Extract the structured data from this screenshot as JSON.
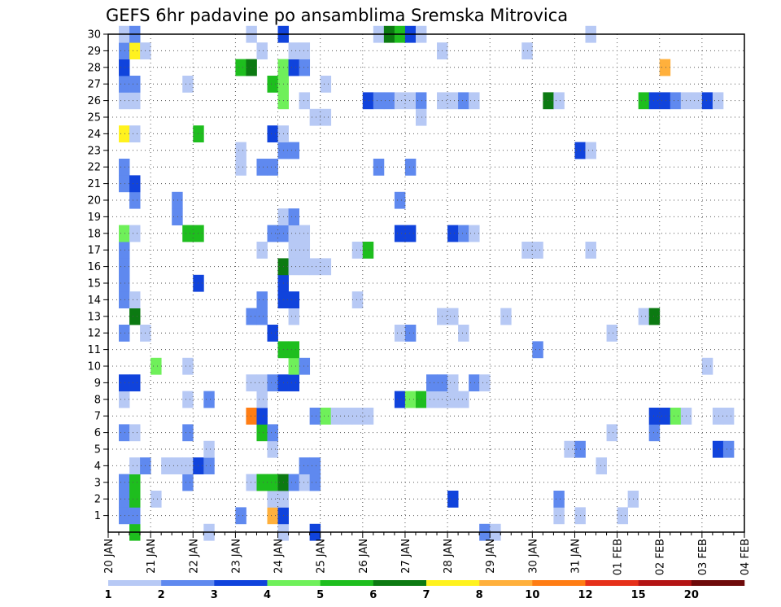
{
  "chart_data": {
    "type": "heatmap",
    "title": "GEFS 6hr padavine po ansamblima Sremska Mitrovica",
    "xlabel": "",
    "ylabel": "",
    "x_ticks": [
      "20 JAN",
      "21 JAN",
      "22 JAN",
      "23 JAN",
      "24 JAN",
      "25 JAN",
      "26 JAN",
      "27 JAN",
      "28 JAN",
      "29 JAN",
      "30 JAN",
      "31 JAN",
      "01 FEB",
      "02 FEB",
      "03 FEB",
      "04 FEB"
    ],
    "x_range": [
      "2020-01-20T00:00",
      "2020-02-04T00:00"
    ],
    "x_step_hours": 6,
    "y_ticks": [
      1,
      2,
      3,
      4,
      5,
      6,
      7,
      8,
      9,
      10,
      11,
      12,
      13,
      14,
      15,
      16,
      17,
      18,
      19,
      20,
      21,
      22,
      23,
      24,
      25,
      26,
      27,
      28,
      29,
      30
    ],
    "y_range": [
      0,
      30
    ],
    "grid": true,
    "legend": {
      "placement": "bottom",
      "labels": [
        "1",
        "2",
        "3",
        "4",
        "5",
        "6",
        "7",
        "8",
        "10",
        "12",
        "15",
        "20"
      ],
      "bounds": [
        1,
        2,
        3,
        4,
        5,
        6,
        7,
        8,
        10,
        12,
        15,
        20
      ],
      "colors": [
        "#b7c9f5",
        "#5f89ef",
        "#1043dc",
        "#6ff05a",
        "#1ebe1e",
        "#0c7a12",
        "#fff21e",
        "#ffb03c",
        "#ff7d14",
        "#e6301a",
        "#b41414",
        "#6e0a0a"
      ]
    },
    "cells": [
      {
        "t": "20 JAN 06",
        "m": 1,
        "l": 2
      },
      {
        "t": "20 JAN 06",
        "m": 2,
        "l": 2
      },
      {
        "t": "20 JAN 06",
        "m": 3,
        "l": 2
      },
      {
        "t": "20 JAN 06",
        "m": 6,
        "l": 2
      },
      {
        "t": "20 JAN 06",
        "m": 8,
        "l": 1
      },
      {
        "t": "20 JAN 06",
        "m": 9,
        "l": 3
      },
      {
        "t": "20 JAN 06",
        "m": 12,
        "l": 2
      },
      {
        "t": "20 JAN 06",
        "m": 14,
        "l": 2
      },
      {
        "t": "20 JAN 06",
        "m": 15,
        "l": 2
      },
      {
        "t": "20 JAN 06",
        "m": 16,
        "l": 2
      },
      {
        "t": "20 JAN 06",
        "m": 17,
        "l": 2
      },
      {
        "t": "20 JAN 06",
        "m": 18,
        "l": 4
      },
      {
        "t": "20 JAN 06",
        "m": 21,
        "l": 2
      },
      {
        "t": "20 JAN 06",
        "m": 22,
        "l": 2
      },
      {
        "t": "20 JAN 06",
        "m": 24,
        "l": 7
      },
      {
        "t": "20 JAN 06",
        "m": 26,
        "l": 1
      },
      {
        "t": "20 JAN 06",
        "m": 27,
        "l": 2
      },
      {
        "t": "20 JAN 06",
        "m": 28,
        "l": 3
      },
      {
        "t": "20 JAN 06",
        "m": 29,
        "l": 2
      },
      {
        "t": "20 JAN 06",
        "m": 30,
        "l": 1
      },
      {
        "t": "20 JAN 12",
        "m": 0,
        "l": 5
      },
      {
        "t": "20 JAN 12",
        "m": 1,
        "l": 2
      },
      {
        "t": "20 JAN 12",
        "m": 2,
        "l": 5
      },
      {
        "t": "20 JAN 12",
        "m": 3,
        "l": 5
      },
      {
        "t": "20 JAN 12",
        "m": 4,
        "l": 1
      },
      {
        "t": "20 JAN 12",
        "m": 6,
        "l": 1
      },
      {
        "t": "20 JAN 12",
        "m": 9,
        "l": 3
      },
      {
        "t": "20 JAN 12",
        "m": 13,
        "l": 6
      },
      {
        "t": "20 JAN 12",
        "m": 14,
        "l": 1
      },
      {
        "t": "20 JAN 12",
        "m": 18,
        "l": 1
      },
      {
        "t": "20 JAN 12",
        "m": 20,
        "l": 2
      },
      {
        "t": "20 JAN 12",
        "m": 21,
        "l": 3
      },
      {
        "t": "20 JAN 12",
        "m": 24,
        "l": 1
      },
      {
        "t": "20 JAN 12",
        "m": 26,
        "l": 1
      },
      {
        "t": "20 JAN 12",
        "m": 27,
        "l": 2
      },
      {
        "t": "20 JAN 12",
        "m": 29,
        "l": 7
      },
      {
        "t": "20 JAN 12",
        "m": 30,
        "l": 2
      },
      {
        "t": "20 JAN 18",
        "m": 4,
        "l": 2
      },
      {
        "t": "20 JAN 18",
        "m": 12,
        "l": 1
      },
      {
        "t": "20 JAN 18",
        "m": 29,
        "l": 1
      },
      {
        "t": "21 JAN 00",
        "m": 2,
        "l": 1
      },
      {
        "t": "21 JAN 00",
        "m": 10,
        "l": 4
      },
      {
        "t": "21 JAN 06",
        "m": 4,
        "l": 1
      },
      {
        "t": "21 JAN 12",
        "m": 4,
        "l": 1
      },
      {
        "t": "21 JAN 12",
        "m": 19,
        "l": 2
      },
      {
        "t": "21 JAN 12",
        "m": 20,
        "l": 2
      },
      {
        "t": "21 JAN 18",
        "m": 3,
        "l": 2
      },
      {
        "t": "21 JAN 18",
        "m": 4,
        "l": 1
      },
      {
        "t": "21 JAN 18",
        "m": 6,
        "l": 2
      },
      {
        "t": "21 JAN 18",
        "m": 8,
        "l": 1
      },
      {
        "t": "21 JAN 18",
        "m": 10,
        "l": 1
      },
      {
        "t": "21 JAN 18",
        "m": 18,
        "l": 5
      },
      {
        "t": "21 JAN 18",
        "m": 27,
        "l": 1
      },
      {
        "t": "22 JAN 00",
        "m": 4,
        "l": 3
      },
      {
        "t": "22 JAN 00",
        "m": 15,
        "l": 3
      },
      {
        "t": "22 JAN 00",
        "m": 18,
        "l": 5
      },
      {
        "t": "22 JAN 00",
        "m": 24,
        "l": 5
      },
      {
        "t": "22 JAN 06",
        "m": 0,
        "l": 1
      },
      {
        "t": "22 JAN 06",
        "m": 4,
        "l": 2
      },
      {
        "t": "22 JAN 06",
        "m": 5,
        "l": 1
      },
      {
        "t": "22 JAN 06",
        "m": 8,
        "l": 2
      },
      {
        "t": "23 JAN 00",
        "m": 1,
        "l": 2
      },
      {
        "t": "23 JAN 00",
        "m": 22,
        "l": 1
      },
      {
        "t": "23 JAN 00",
        "m": 23,
        "l": 1
      },
      {
        "t": "23 JAN 00",
        "m": 28,
        "l": 5
      },
      {
        "t": "23 JAN 06",
        "m": 3,
        "l": 1
      },
      {
        "t": "23 JAN 06",
        "m": 7,
        "l": 9
      },
      {
        "t": "23 JAN 06",
        "m": 9,
        "l": 1
      },
      {
        "t": "23 JAN 06",
        "m": 13,
        "l": 2
      },
      {
        "t": "23 JAN 06",
        "m": 28,
        "l": 6
      },
      {
        "t": "23 JAN 06",
        "m": 30,
        "l": 1
      },
      {
        "t": "23 JAN 12",
        "m": 3,
        "l": 5
      },
      {
        "t": "23 JAN 12",
        "m": 6,
        "l": 5
      },
      {
        "t": "23 JAN 12",
        "m": 7,
        "l": 3
      },
      {
        "t": "23 JAN 12",
        "m": 8,
        "l": 1
      },
      {
        "t": "23 JAN 12",
        "m": 9,
        "l": 1
      },
      {
        "t": "23 JAN 12",
        "m": 13,
        "l": 2
      },
      {
        "t": "23 JAN 12",
        "m": 14,
        "l": 2
      },
      {
        "t": "23 JAN 12",
        "m": 17,
        "l": 1
      },
      {
        "t": "23 JAN 12",
        "m": 22,
        "l": 2
      },
      {
        "t": "23 JAN 12",
        "m": 29,
        "l": 1
      },
      {
        "t": "23 JAN 18",
        "m": 1,
        "l": 8
      },
      {
        "t": "23 JAN 18",
        "m": 2,
        "l": 1
      },
      {
        "t": "23 JAN 18",
        "m": 3,
        "l": 5
      },
      {
        "t": "23 JAN 18",
        "m": 5,
        "l": 1
      },
      {
        "t": "23 JAN 18",
        "m": 6,
        "l": 2
      },
      {
        "t": "23 JAN 18",
        "m": 9,
        "l": 2
      },
      {
        "t": "23 JAN 18",
        "m": 12,
        "l": 3
      },
      {
        "t": "23 JAN 18",
        "m": 18,
        "l": 2
      },
      {
        "t": "23 JAN 18",
        "m": 22,
        "l": 2
      },
      {
        "t": "23 JAN 18",
        "m": 24,
        "l": 3
      },
      {
        "t": "23 JAN 18",
        "m": 27,
        "l": 5
      },
      {
        "t": "24 JAN 00",
        "m": 0,
        "l": 1
      },
      {
        "t": "24 JAN 00",
        "m": 1,
        "l": 3
      },
      {
        "t": "24 JAN 00",
        "m": 2,
        "l": 1
      },
      {
        "t": "24 JAN 00",
        "m": 3,
        "l": 6
      },
      {
        "t": "24 JAN 00",
        "m": 9,
        "l": 3
      },
      {
        "t": "24 JAN 00",
        "m": 11,
        "l": 5
      },
      {
        "t": "24 JAN 00",
        "m": 14,
        "l": 3
      },
      {
        "t": "24 JAN 00",
        "m": 15,
        "l": 3
      },
      {
        "t": "24 JAN 00",
        "m": 16,
        "l": 6
      },
      {
        "t": "24 JAN 00",
        "m": 18,
        "l": 2
      },
      {
        "t": "24 JAN 00",
        "m": 19,
        "l": 1
      },
      {
        "t": "24 JAN 00",
        "m": 23,
        "l": 2
      },
      {
        "t": "24 JAN 00",
        "m": 24,
        "l": 1
      },
      {
        "t": "24 JAN 00",
        "m": 26,
        "l": 4
      },
      {
        "t": "24 JAN 00",
        "m": 27,
        "l": 4
      },
      {
        "t": "24 JAN 00",
        "m": 28,
        "l": 4
      },
      {
        "t": "24 JAN 00",
        "m": 30,
        "l": 3
      },
      {
        "t": "24 JAN 06",
        "m": 3,
        "l": 2
      },
      {
        "t": "24 JAN 06",
        "m": 9,
        "l": 3
      },
      {
        "t": "24 JAN 06",
        "m": 10,
        "l": 4
      },
      {
        "t": "24 JAN 06",
        "m": 11,
        "l": 5
      },
      {
        "t": "24 JAN 06",
        "m": 13,
        "l": 1
      },
      {
        "t": "24 JAN 06",
        "m": 14,
        "l": 3
      },
      {
        "t": "24 JAN 06",
        "m": 16,
        "l": 1
      },
      {
        "t": "24 JAN 06",
        "m": 17,
        "l": 1
      },
      {
        "t": "24 JAN 06",
        "m": 18,
        "l": 1
      },
      {
        "t": "24 JAN 06",
        "m": 19,
        "l": 2
      },
      {
        "t": "24 JAN 06",
        "m": 23,
        "l": 2
      },
      {
        "t": "24 JAN 06",
        "m": 28,
        "l": 3
      },
      {
        "t": "24 JAN 06",
        "m": 29,
        "l": 1
      },
      {
        "t": "24 JAN 12",
        "m": 3,
        "l": 1
      },
      {
        "t": "24 JAN 12",
        "m": 4,
        "l": 2
      },
      {
        "t": "24 JAN 12",
        "m": 10,
        "l": 2
      },
      {
        "t": "24 JAN 12",
        "m": 16,
        "l": 1
      },
      {
        "t": "24 JAN 12",
        "m": 17,
        "l": 1
      },
      {
        "t": "24 JAN 12",
        "m": 18,
        "l": 1
      },
      {
        "t": "24 JAN 12",
        "m": 26,
        "l": 1
      },
      {
        "t": "24 JAN 12",
        "m": 28,
        "l": 2
      },
      {
        "t": "24 JAN 12",
        "m": 29,
        "l": 1
      },
      {
        "t": "24 JAN 18",
        "m": 0,
        "l": 3
      },
      {
        "t": "24 JAN 18",
        "m": 3,
        "l": 2
      },
      {
        "t": "24 JAN 18",
        "m": 4,
        "l": 2
      },
      {
        "t": "24 JAN 18",
        "m": 7,
        "l": 2
      },
      {
        "t": "24 JAN 18",
        "m": 16,
        "l": 1
      },
      {
        "t": "24 JAN 18",
        "m": 25,
        "l": 1
      },
      {
        "t": "25 JAN 00",
        "m": 7,
        "l": 4
      },
      {
        "t": "25 JAN 00",
        "m": 16,
        "l": 1
      },
      {
        "t": "25 JAN 00",
        "m": 25,
        "l": 1
      },
      {
        "t": "25 JAN 00",
        "m": 27,
        "l": 1
      },
      {
        "t": "25 JAN 06",
        "m": 7,
        "l": 1
      },
      {
        "t": "25 JAN 12",
        "m": 7,
        "l": 1
      },
      {
        "t": "25 JAN 18",
        "m": 7,
        "l": 1
      },
      {
        "t": "25 JAN 18",
        "m": 14,
        "l": 1
      },
      {
        "t": "25 JAN 18",
        "m": 17,
        "l": 1
      },
      {
        "t": "26 JAN 00",
        "m": 7,
        "l": 1
      },
      {
        "t": "26 JAN 00",
        "m": 17,
        "l": 5
      },
      {
        "t": "26 JAN 00",
        "m": 26,
        "l": 3
      },
      {
        "t": "26 JAN 06",
        "m": 22,
        "l": 2
      },
      {
        "t": "26 JAN 06",
        "m": 26,
        "l": 2
      },
      {
        "t": "26 JAN 06",
        "m": 30,
        "l": 1
      },
      {
        "t": "26 JAN 12",
        "m": 26,
        "l": 2
      },
      {
        "t": "26 JAN 12",
        "m": 30,
        "l": 6
      },
      {
        "t": "26 JAN 18",
        "m": 8,
        "l": 3
      },
      {
        "t": "26 JAN 18",
        "m": 12,
        "l": 1
      },
      {
        "t": "26 JAN 18",
        "m": 18,
        "l": 3
      },
      {
        "t": "26 JAN 18",
        "m": 20,
        "l": 2
      },
      {
        "t": "26 JAN 18",
        "m": 26,
        "l": 1
      },
      {
        "t": "26 JAN 18",
        "m": 30,
        "l": 5
      },
      {
        "t": "27 JAN 00",
        "m": 8,
        "l": 4
      },
      {
        "t": "27 JAN 00",
        "m": 12,
        "l": 2
      },
      {
        "t": "27 JAN 00",
        "m": 18,
        "l": 3
      },
      {
        "t": "27 JAN 00",
        "m": 22,
        "l": 2
      },
      {
        "t": "27 JAN 00",
        "m": 26,
        "l": 1
      },
      {
        "t": "27 JAN 00",
        "m": 30,
        "l": 3
      },
      {
        "t": "27 JAN 06",
        "m": 8,
        "l": 5
      },
      {
        "t": "27 JAN 06",
        "m": 26,
        "l": 2
      },
      {
        "t": "27 JAN 06",
        "m": 25,
        "l": 1
      },
      {
        "t": "27 JAN 06",
        "m": 30,
        "l": 1
      },
      {
        "t": "27 JAN 12",
        "m": 8,
        "l": 1
      },
      {
        "t": "27 JAN 12",
        "m": 9,
        "l": 2
      },
      {
        "t": "27 JAN 18",
        "m": 8,
        "l": 1
      },
      {
        "t": "27 JAN 18",
        "m": 9,
        "l": 2
      },
      {
        "t": "27 JAN 18",
        "m": 13,
        "l": 1
      },
      {
        "t": "27 JAN 18",
        "m": 26,
        "l": 1
      },
      {
        "t": "27 JAN 18",
        "m": 29,
        "l": 1
      },
      {
        "t": "28 JAN 00",
        "m": 2,
        "l": 3
      },
      {
        "t": "28 JAN 00",
        "m": 8,
        "l": 1
      },
      {
        "t": "28 JAN 00",
        "m": 9,
        "l": 1
      },
      {
        "t": "28 JAN 00",
        "m": 13,
        "l": 1
      },
      {
        "t": "28 JAN 00",
        "m": 18,
        "l": 3
      },
      {
        "t": "28 JAN 00",
        "m": 26,
        "l": 1
      },
      {
        "t": "28 JAN 06",
        "m": 8,
        "l": 1
      },
      {
        "t": "28 JAN 06",
        "m": 12,
        "l": 1
      },
      {
        "t": "28 JAN 06",
        "m": 18,
        "l": 2
      },
      {
        "t": "28 JAN 06",
        "m": 26,
        "l": 2
      },
      {
        "t": "28 JAN 12",
        "m": 9,
        "l": 2
      },
      {
        "t": "28 JAN 12",
        "m": 18,
        "l": 1
      },
      {
        "t": "28 JAN 12",
        "m": 26,
        "l": 1
      },
      {
        "t": "28 JAN 18",
        "m": 0,
        "l": 2
      },
      {
        "t": "28 JAN 18",
        "m": 9,
        "l": 1
      },
      {
        "t": "29 JAN 00",
        "m": 0,
        "l": 1
      },
      {
        "t": "29 JAN 06",
        "m": 13,
        "l": 1
      },
      {
        "t": "29 JAN 18",
        "m": 17,
        "l": 1
      },
      {
        "t": "29 JAN 18",
        "m": 29,
        "l": 1
      },
      {
        "t": "30 JAN 00",
        "m": 11,
        "l": 2
      },
      {
        "t": "30 JAN 00",
        "m": 17,
        "l": 1
      },
      {
        "t": "30 JAN 06",
        "m": 26,
        "l": 6
      },
      {
        "t": "30 JAN 12",
        "m": 1,
        "l": 1
      },
      {
        "t": "30 JAN 12",
        "m": 2,
        "l": 2
      },
      {
        "t": "30 JAN 12",
        "m": 26,
        "l": 1
      },
      {
        "t": "30 JAN 18",
        "m": 5,
        "l": 1
      },
      {
        "t": "31 JAN 00",
        "m": 1,
        "l": 1
      },
      {
        "t": "31 JAN 00",
        "m": 5,
        "l": 2
      },
      {
        "t": "31 JAN 00",
        "m": 23,
        "l": 3
      },
      {
        "t": "31 JAN 06",
        "m": 17,
        "l": 1
      },
      {
        "t": "31 JAN 06",
        "m": 23,
        "l": 1
      },
      {
        "t": "31 JAN 06",
        "m": 30,
        "l": 1
      },
      {
        "t": "31 JAN 12",
        "m": 4,
        "l": 1
      },
      {
        "t": "31 JAN 18",
        "m": 6,
        "l": 1
      },
      {
        "t": "31 JAN 18",
        "m": 12,
        "l": 1
      },
      {
        "t": "01 FEB 00",
        "m": 1,
        "l": 1
      },
      {
        "t": "01 FEB 06",
        "m": 2,
        "l": 1
      },
      {
        "t": "01 FEB 12",
        "m": 13,
        "l": 1
      },
      {
        "t": "01 FEB 12",
        "m": 26,
        "l": 5
      },
      {
        "t": "01 FEB 18",
        "m": 6,
        "l": 2
      },
      {
        "t": "01 FEB 18",
        "m": 7,
        "l": 3
      },
      {
        "t": "01 FEB 18",
        "m": 13,
        "l": 6
      },
      {
        "t": "01 FEB 18",
        "m": 26,
        "l": 3
      },
      {
        "t": "02 FEB 00",
        "m": 7,
        "l": 3
      },
      {
        "t": "02 FEB 00",
        "m": 26,
        "l": 3
      },
      {
        "t": "02 FEB 00",
        "m": 28,
        "l": 8
      },
      {
        "t": "02 FEB 06",
        "m": 7,
        "l": 4
      },
      {
        "t": "02 FEB 06",
        "m": 26,
        "l": 2
      },
      {
        "t": "02 FEB 12",
        "m": 7,
        "l": 1
      },
      {
        "t": "02 FEB 12",
        "m": 26,
        "l": 1
      },
      {
        "t": "02 FEB 18",
        "m": 26,
        "l": 1
      },
      {
        "t": "03 FEB 00",
        "m": 10,
        "l": 1
      },
      {
        "t": "03 FEB 00",
        "m": 26,
        "l": 3
      },
      {
        "t": "03 FEB 06",
        "m": 5,
        "l": 3
      },
      {
        "t": "03 FEB 06",
        "m": 7,
        "l": 1
      },
      {
        "t": "03 FEB 06",
        "m": 26,
        "l": 1
      },
      {
        "t": "03 FEB 12",
        "m": 5,
        "l": 2
      },
      {
        "t": "03 FEB 12",
        "m": 7,
        "l": 1
      }
    ]
  }
}
